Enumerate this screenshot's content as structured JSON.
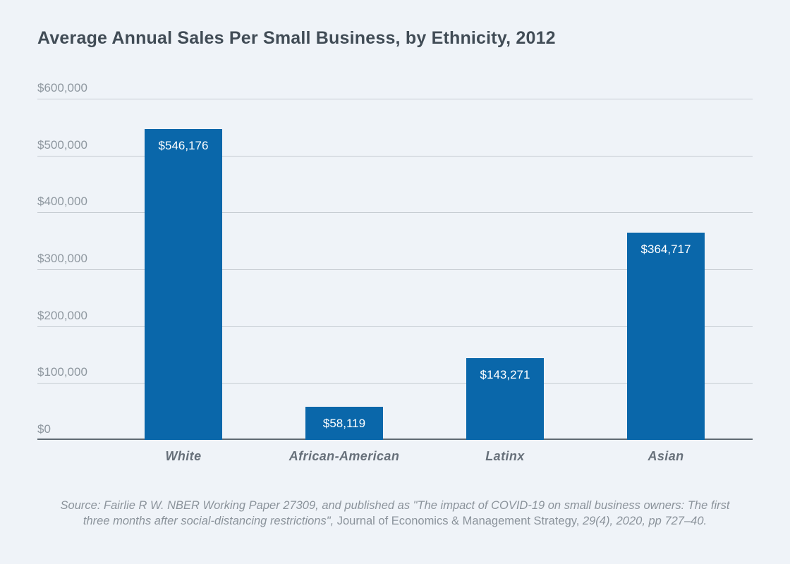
{
  "chart_data": {
    "type": "bar",
    "title": "Average Annual Sales Per Small Business, by Ethnicity, 2012",
    "categories": [
      "White",
      "African-American",
      "Latinx",
      "Asian"
    ],
    "values": [
      546176,
      58119,
      143271,
      364717
    ],
    "value_labels": [
      "$546,176",
      "$58,119",
      "$143,271",
      "$364,717"
    ],
    "xlabel": "",
    "ylabel": "",
    "ylim": [
      0,
      600000
    ],
    "ytick_interval": 100000,
    "ytick_labels": [
      "$0",
      "$100,000",
      "$200,000",
      "$300,000",
      "$400,000",
      "$500,000",
      "$600,000"
    ],
    "grid": true,
    "legend": "none",
    "bar_color": "#0a67aa",
    "background_color": "#eff3f8"
  },
  "source": {
    "line1": "Source: Fairlie R W. NBER Working Paper 27309, and published as \"The impact of COVID-19 on small business owners: The first",
    "line2_italic_before": "three months after social-distancing restrictions\", ",
    "line2_roman": "Journal of Economics & Management Strategy,",
    "line2_italic_after": " 29(4), 2020, pp 727–40."
  }
}
